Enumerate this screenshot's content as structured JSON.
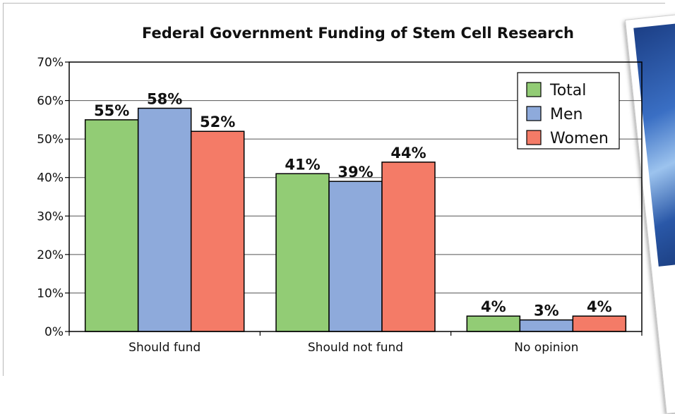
{
  "colors": {
    "total": "#92cc75",
    "men": "#8eaadb",
    "women": "#f47b67",
    "grid": "#555555",
    "border": "#000000"
  },
  "photo": {
    "icon": "stem-cell-photo"
  },
  "chart_data": {
    "type": "bar",
    "title": "Federal Government Funding of Stem Cell Research",
    "categories": [
      "Should fund",
      "Should not fund",
      "No opinion"
    ],
    "series": [
      {
        "name": "Total",
        "values": [
          55,
          41,
          4
        ],
        "labels": [
          "55%",
          "41%",
          "4%"
        ],
        "color": "#92cc75"
      },
      {
        "name": "Men",
        "values": [
          58,
          39,
          3
        ],
        "labels": [
          "58%",
          "39%",
          "3%"
        ],
        "color": "#8eaadb"
      },
      {
        "name": "Women",
        "values": [
          52,
          44,
          4
        ],
        "labels": [
          "52%",
          "44%",
          "4%"
        ],
        "color": "#f47b67"
      }
    ],
    "ylim": [
      0,
      70
    ],
    "yticks": [
      "0%",
      "10%",
      "20%",
      "30%",
      "40%",
      "50%",
      "60%",
      "70%"
    ],
    "xlabel": "",
    "ylabel": "",
    "grid": true,
    "legend": "top-right"
  }
}
